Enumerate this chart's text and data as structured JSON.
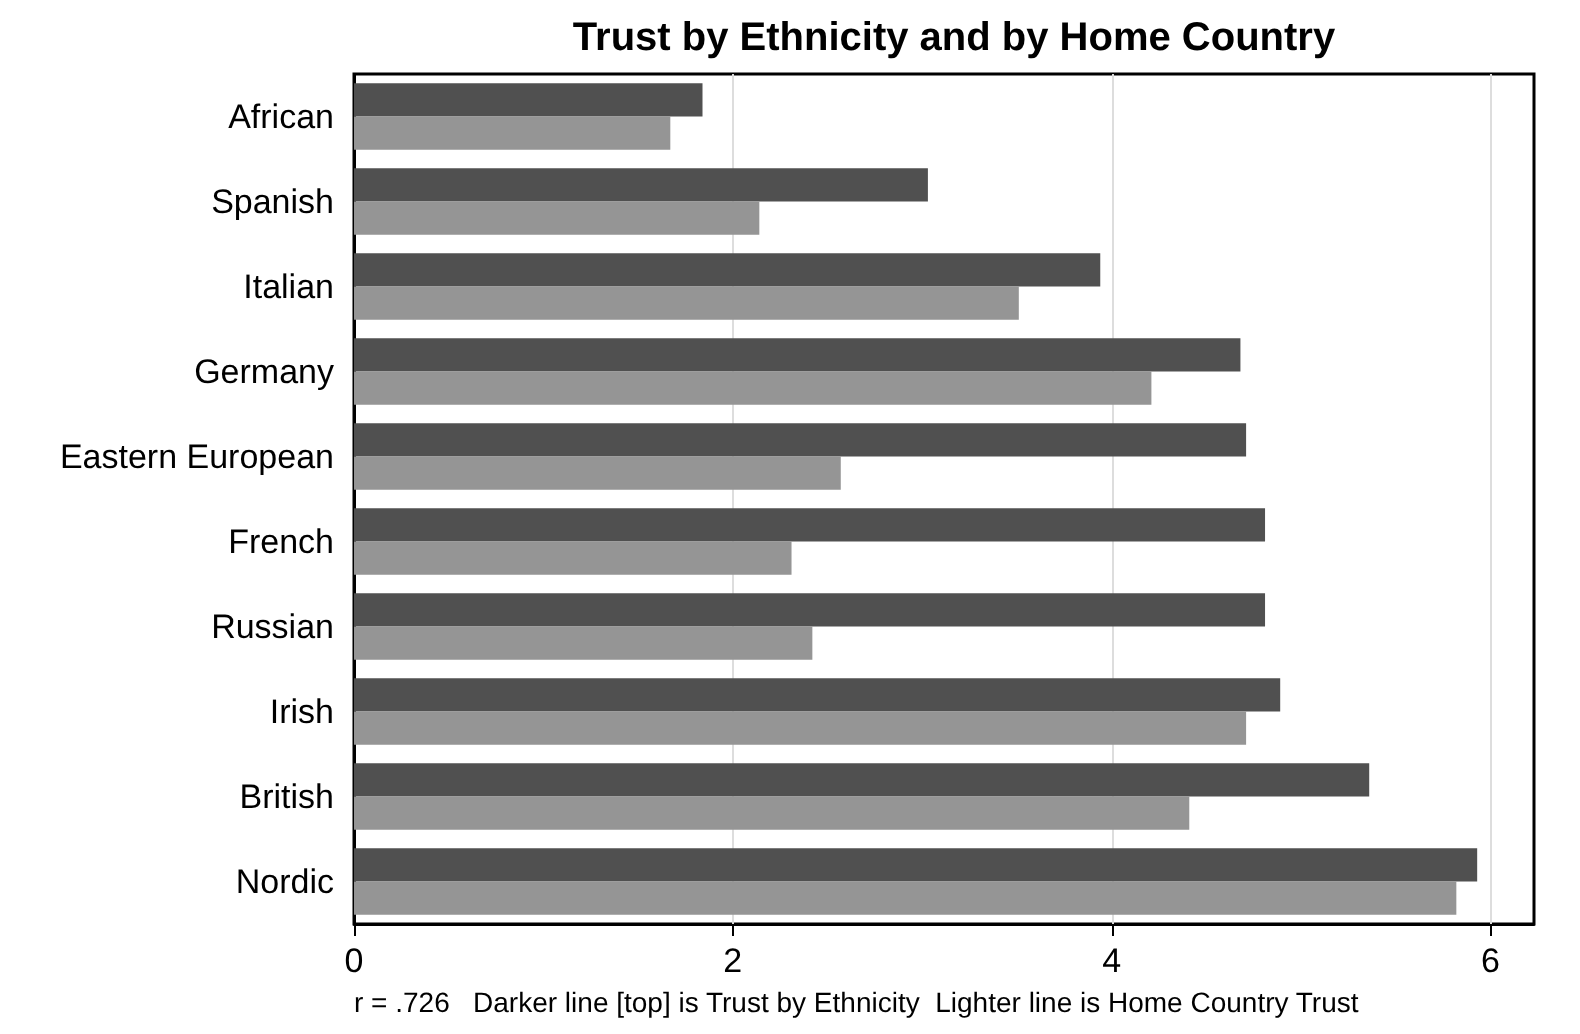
{
  "chart_data": {
    "type": "bar",
    "orientation": "horizontal",
    "title": "Trust by Ethnicity and by Home Country",
    "categories": [
      "African",
      "Spanish",
      "Italian",
      "Germany",
      "Eastern European",
      "French",
      "Russian",
      "Irish",
      "British",
      "Nordic"
    ],
    "series": [
      {
        "color": "#505050",
        "values": [
          1.84,
          3.03,
          3.94,
          4.68,
          4.71,
          4.81,
          4.81,
          4.89,
          5.36,
          5.93
        ]
      },
      {
        "color": "#959595",
        "values": [
          1.67,
          2.14,
          3.51,
          4.21,
          2.57,
          2.31,
          2.42,
          4.71,
          4.41,
          5.82
        ]
      }
    ],
    "xlim": [
      0,
      6.23
    ],
    "xticks": [
      0,
      2,
      4,
      6
    ],
    "grid": "x",
    "annotations": [
      "r = .726   Darker line [top] is Trust by Ethnicity  Lighter line is Home Country Trust"
    ]
  }
}
